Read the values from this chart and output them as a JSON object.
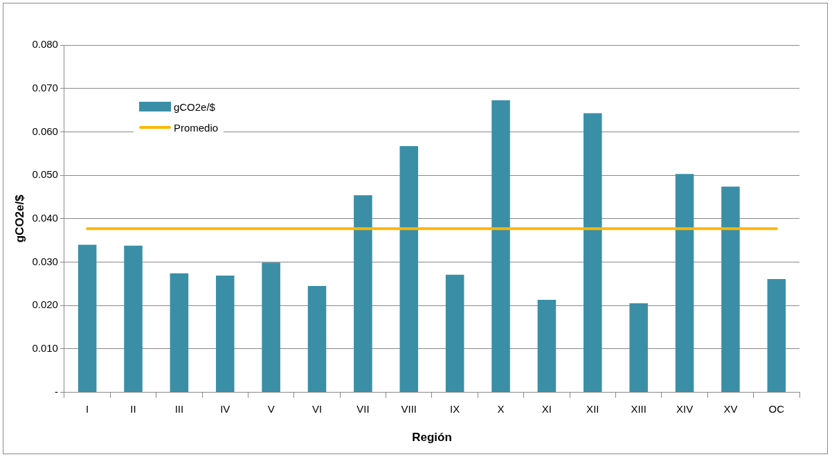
{
  "chart_data": {
    "type": "bar",
    "xlabel": "Región",
    "ylabel": "gCO2e/$",
    "categories": [
      "I",
      "II",
      "III",
      "IV",
      "V",
      "VI",
      "VII",
      "VIII",
      "IX",
      "X",
      "XI",
      "XII",
      "XIII",
      "XIV",
      "XV",
      "OC"
    ],
    "series": [
      {
        "name": "gCO2e/$",
        "color": "#3a8fa6",
        "values": [
          0.034,
          0.0338,
          0.0274,
          0.0269,
          0.0299,
          0.0245,
          0.0454,
          0.0567,
          0.0271,
          0.0673,
          0.0213,
          0.0643,
          0.0205,
          0.0503,
          0.0474,
          0.0261
        ]
      },
      {
        "name": "Promedio",
        "type": "line",
        "color": "#ffb600",
        "values": [
          0.0377,
          0.0377,
          0.0377,
          0.0377,
          0.0377,
          0.0377,
          0.0377,
          0.0377,
          0.0377,
          0.0377,
          0.0377,
          0.0377,
          0.0377,
          0.0377,
          0.0377,
          0.0377
        ]
      }
    ],
    "ylim": [
      0,
      0.08
    ],
    "yticks": [
      {
        "value": 0,
        "label": "-"
      },
      {
        "value": 0.01,
        "label": "0.010"
      },
      {
        "value": 0.02,
        "label": "0.020"
      },
      {
        "value": 0.03,
        "label": "0.030"
      },
      {
        "value": 0.04,
        "label": "0.040"
      },
      {
        "value": 0.05,
        "label": "0.050"
      },
      {
        "value": 0.06,
        "label": "0.060"
      },
      {
        "value": 0.07,
        "label": "0.070"
      },
      {
        "value": 0.08,
        "label": "0.080"
      }
    ],
    "grid": "y",
    "legend": "top left",
    "marker": "none",
    "line_style": "solid"
  }
}
